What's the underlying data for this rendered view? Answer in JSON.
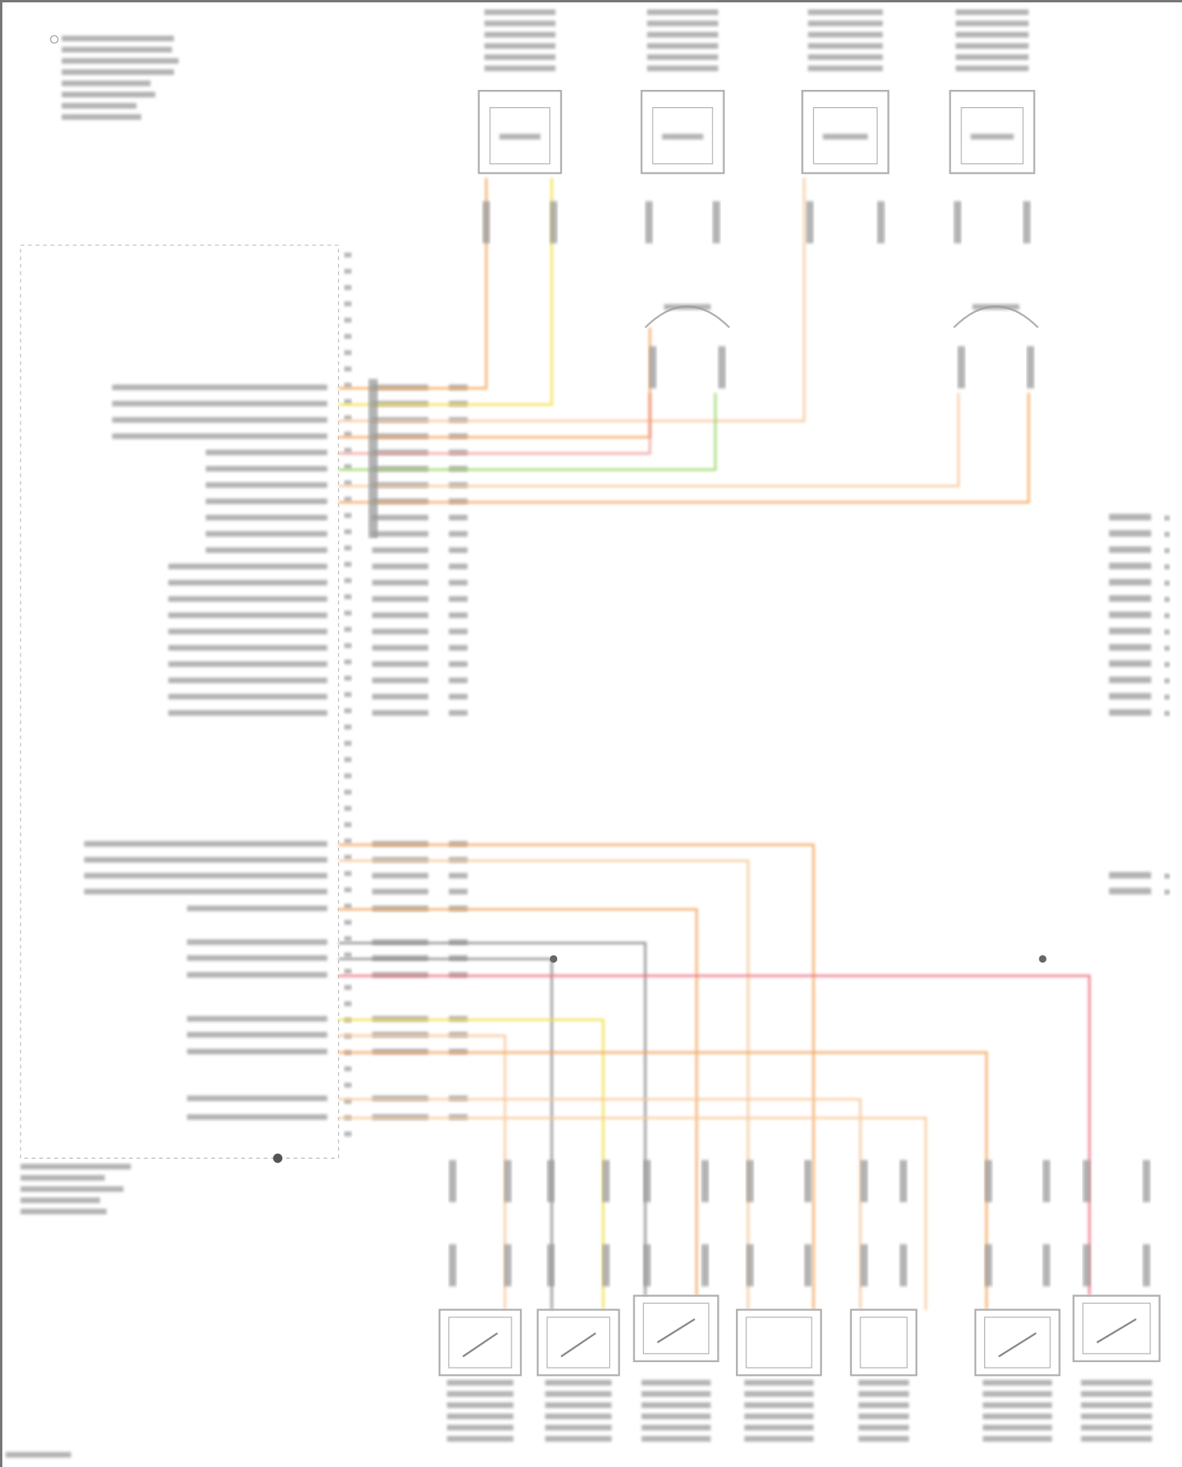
{
  "diagram": {
    "colors": {
      "orange": "#f5a860",
      "yellow": "#f2e04a",
      "light_orange": "#f7c89a",
      "pink": "#f2a0a0",
      "green": "#9fd86a",
      "olive": "#c9c98a",
      "magenta": "#ee66ee",
      "red": "#f07080",
      "gray": "#8a8a8a",
      "violet": "#9a90e0",
      "text_gray": "#9a9a9a",
      "outline": "#b0b0b0"
    },
    "upper_wires": [
      "orange",
      "yellow",
      "light_orange",
      "orange",
      "pink",
      "green",
      "light_orange",
      "orange",
      "yellow",
      "magenta",
      "green",
      "olive",
      "orange",
      "light_orange",
      "orange",
      "olive",
      "orange",
      "light_orange",
      "pink",
      "light_orange",
      "red"
    ],
    "lower_wires": [
      "orange",
      "light_orange",
      "olive",
      "yellow",
      "orange",
      "gray",
      "gray",
      "red",
      "yellow",
      "light_orange",
      "orange",
      "light_orange",
      "light_orange"
    ],
    "top_components": 4,
    "bottom_components": 7,
    "right_connector_pins": 15
  }
}
